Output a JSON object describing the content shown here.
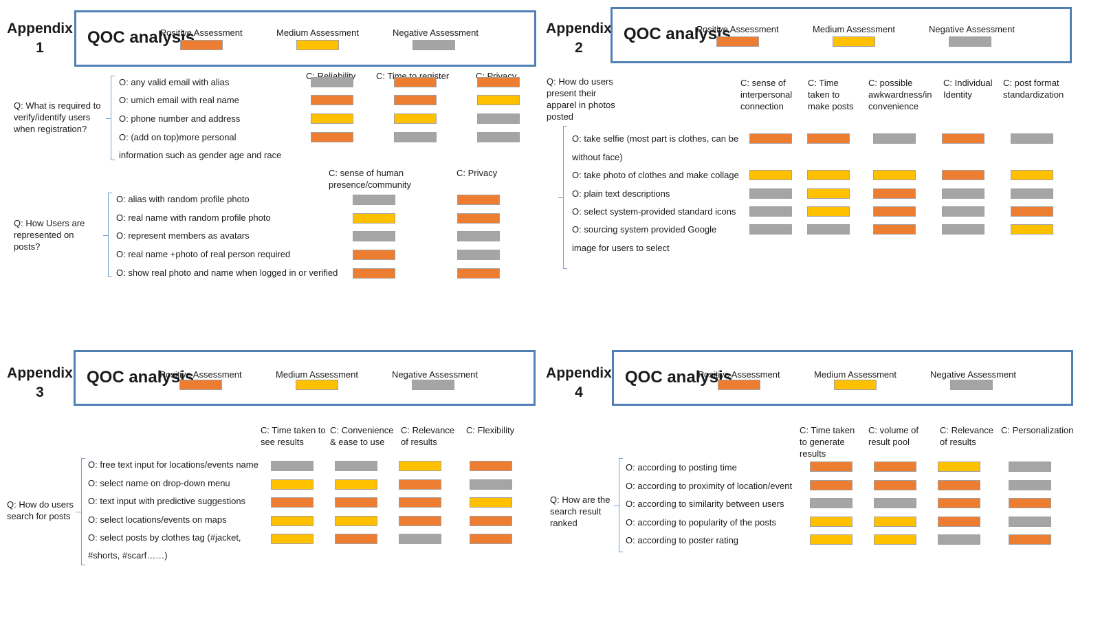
{
  "colors": {
    "positive": "#ed7d31",
    "medium": "#ffc000",
    "negative": "#a5a5a5",
    "frame": "#4f7fb4",
    "brace": "#6f9fd0"
  },
  "legend": {
    "title": "QOC analysis",
    "positive": "Positive Assessment",
    "medium": "Medium Assessment",
    "negative": "Negative Assessment"
  },
  "panels": [
    {
      "appendix_label": "Appendix",
      "appendix_number": "1",
      "groups": [
        {
          "question": "Q: What is required to verify/identify users when registration?",
          "criteria": [
            "C: Reliability",
            "C: Time to register",
            "C: Privacy"
          ],
          "options": [
            {
              "text": "O: any valid email with alias",
              "ratings": [
                "negative",
                "positive",
                "positive"
              ]
            },
            {
              "text": "O: umich email with real name",
              "ratings": [
                "positive",
                "positive",
                "medium"
              ]
            },
            {
              "text": "O: phone number and address",
              "ratings": [
                "medium",
                "medium",
                "negative"
              ]
            },
            {
              "text": "O: (add on top)more personal",
              "text2": "information such as gender age and race",
              "ratings": [
                "positive",
                "negative",
                "negative"
              ]
            }
          ]
        },
        {
          "question": "Q: How Users are represented on posts?",
          "criteria": [
            "C: sense of human presence/community",
            "C: Privacy"
          ],
          "options": [
            {
              "text": "O: alias with random profile photo",
              "ratings": [
                "negative",
                "positive"
              ]
            },
            {
              "text": "O: real name with random profile photo",
              "ratings": [
                "medium",
                "positive"
              ]
            },
            {
              "text": "O: represent members as avatars",
              "ratings": [
                "negative",
                "negative"
              ]
            },
            {
              "text": "O: real name +photo of real person required",
              "ratings": [
                "positive",
                "negative"
              ]
            },
            {
              "text": "O: show real photo and name when logged in or verified",
              "ratings": [
                "positive",
                "positive"
              ]
            }
          ]
        }
      ]
    },
    {
      "appendix_label": "Appendix",
      "appendix_number": "2",
      "groups": [
        {
          "question": "Q: How do users present their apparel in photos posted",
          "criteria": [
            "C: sense of interpersonal connection",
            "C: Time taken to make posts",
            "C: possible awkwardness/in convenience",
            "C: Individual Identity",
            "C: post format standardization"
          ],
          "options": [
            {
              "text": "O: take selfie (most part is clothes, can be",
              "text2": "without face)",
              "ratings": [
                "positive",
                "positive",
                "negative",
                "positive",
                "negative"
              ]
            },
            {
              "text": "O: take photo of clothes and make collage",
              "ratings": [
                "medium",
                "medium",
                "medium",
                "positive",
                "medium"
              ]
            },
            {
              "text": "O: plain text descriptions",
              "ratings": [
                "negative",
                "medium",
                "positive",
                "negative",
                "negative"
              ]
            },
            {
              "text": "O: select system-provided standard icons",
              "ratings": [
                "negative",
                "medium",
                "positive",
                "negative",
                "positive"
              ]
            },
            {
              "text": "O: sourcing system provided Google",
              "text2": "image for users to select",
              "ratings": [
                "negative",
                "negative",
                "positive",
                "negative",
                "medium"
              ]
            }
          ]
        }
      ]
    },
    {
      "appendix_label": "Appendix",
      "appendix_number": "3",
      "groups": [
        {
          "question": "Q: How do users search for posts",
          "criteria": [
            "C: Time taken to see results",
            "C: Convenience & ease to use",
            "C: Relevance of results",
            "C: Flexibility"
          ],
          "options": [
            {
              "text": "O: free text input for locations/events name",
              "ratings": [
                "negative",
                "negative",
                "medium",
                "positive"
              ]
            },
            {
              "text": "O: select name on drop-down menu",
              "ratings": [
                "medium",
                "medium",
                "positive",
                "negative"
              ]
            },
            {
              "text": "O: text input with predictive suggestions",
              "ratings": [
                "positive",
                "positive",
                "positive",
                "medium"
              ]
            },
            {
              "text": "O: select locations/events on maps",
              "ratings": [
                "medium",
                "medium",
                "positive",
                "positive"
              ]
            },
            {
              "text": "O: select posts by clothes tag (#jacket,",
              "text2": "#shorts, #scarf……)",
              "ratings": [
                "medium",
                "positive",
                "negative",
                "positive"
              ]
            }
          ]
        }
      ]
    },
    {
      "appendix_label": "Appendix",
      "appendix_number": "4",
      "groups": [
        {
          "question": "Q: How are the search result ranked",
          "criteria": [
            "C: Time taken to generate results",
            "C: volume of result pool",
            "C: Relevance of results",
            "C: Personalization"
          ],
          "options": [
            {
              "text": "O: according to posting time",
              "ratings": [
                "positive",
                "positive",
                "medium",
                "negative"
              ]
            },
            {
              "text": "O: according to proximity of location/event",
              "ratings": [
                "positive",
                "positive",
                "positive",
                "negative"
              ]
            },
            {
              "text": "O: according to similarity between users",
              "ratings": [
                "negative",
                "negative",
                "positive",
                "positive"
              ]
            },
            {
              "text": "O: according to popularity of the posts",
              "ratings": [
                "medium",
                "medium",
                "positive",
                "negative"
              ]
            },
            {
              "text": "O: according to poster rating",
              "ratings": [
                "medium",
                "medium",
                "negative",
                "positive"
              ]
            }
          ]
        }
      ]
    }
  ]
}
